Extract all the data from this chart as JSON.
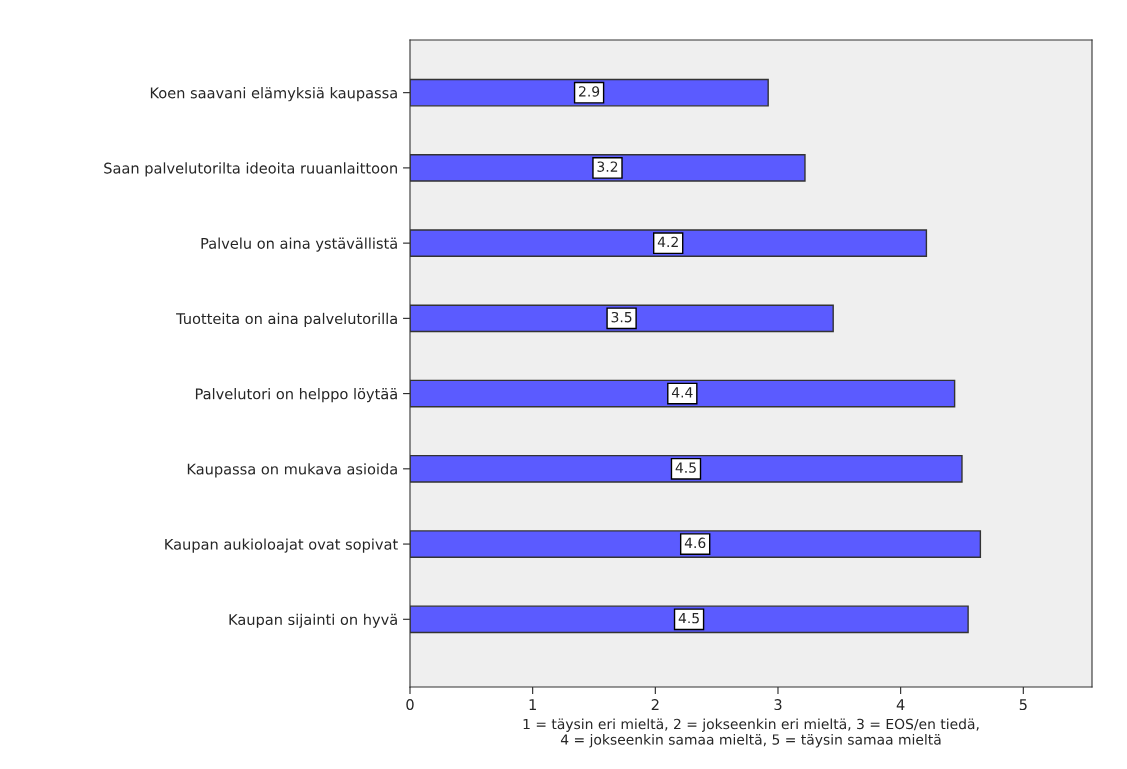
{
  "chart_data": {
    "type": "bar",
    "orientation": "horizontal",
    "categories": [
      "Koen saavani elämyksiä kaupassa",
      "Saan palvelutorilta ideoita ruuanlaittoon",
      "Palvelu on aina ystävällistä",
      "Tuotteita on aina palvelutorilla",
      "Palvelutori on helppo löytää",
      "Kaupassa on mukava asioida",
      "Kaupan aukioloajat ovat sopivat",
      "Kaupan sijainti on hyvä"
    ],
    "values": [
      2.92,
      3.22,
      4.21,
      3.45,
      4.44,
      4.5,
      4.65,
      4.55
    ],
    "value_labels": [
      "2.9",
      "3.2",
      "4.2",
      "3.5",
      "4.4",
      "4.5",
      "4.6",
      "4.5"
    ],
    "color": "#5b5bff",
    "xlim": [
      0,
      5.56
    ],
    "xticks": [
      0,
      1,
      2,
      3,
      4,
      5
    ],
    "xlabel": "1 = täysin eri mieltä, 2 = jokseenkin eri mieltä, 3 = EOS/en tiedä,\n4 = jokseenkin samaa mieltä, 5 = täysin samaa mieltä",
    "grid": false,
    "legend": false
  }
}
